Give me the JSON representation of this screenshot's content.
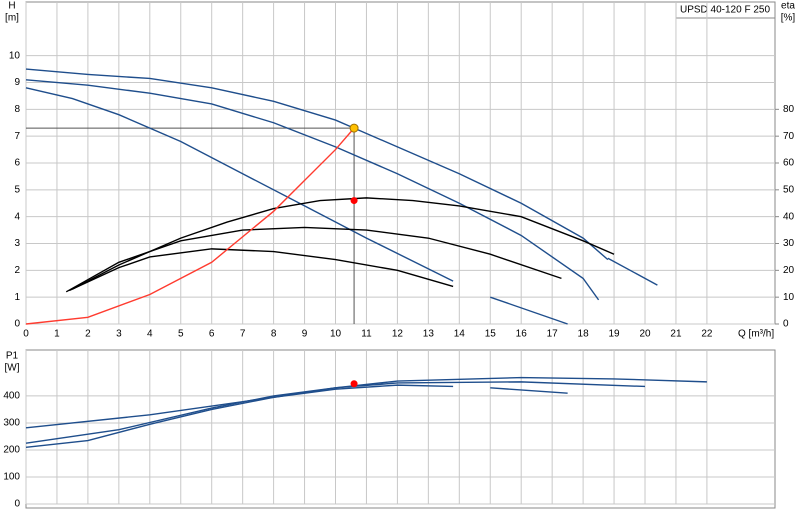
{
  "chart_data": [
    {
      "type": "line",
      "product_label": "UPSD 40-120 F 250",
      "ylabel": "H",
      "yunit": "[m]",
      "y2label": "eta",
      "y2unit": "[%]",
      "xlabel": "Q [m³/h]",
      "xlim": [
        0,
        24.2
      ],
      "xticks": [
        0,
        1,
        2,
        3,
        4,
        5,
        6,
        7,
        8,
        9,
        10,
        11,
        12,
        13,
        14,
        15,
        16,
        17,
        18,
        19,
        20,
        21,
        22
      ],
      "ylim": [
        0,
        12
      ],
      "yticks": [
        0,
        1,
        2,
        3,
        4,
        5,
        6,
        7,
        8,
        9,
        10
      ],
      "y2lim": [
        0,
        120
      ],
      "y2ticks": [
        0,
        10,
        20,
        30,
        40,
        50,
        60,
        70,
        80
      ],
      "grid": true,
      "series": [
        {
          "color": "#1f4e8c",
          "x": [
            0,
            2,
            4,
            6,
            8,
            10,
            10.6,
            12,
            14,
            16,
            18,
            18.8
          ],
          "values": [
            9.5,
            9.3,
            9.15,
            8.8,
            8.3,
            7.6,
            7.3,
            6.6,
            5.6,
            4.5,
            3.2,
            2.4
          ]
        },
        {
          "color": "#1f4e8c",
          "x": [
            18.8,
            20.4
          ],
          "values": [
            2.45,
            1.45
          ]
        },
        {
          "color": "#1f4e8c",
          "x": [
            0,
            2,
            4,
            6,
            8,
            10,
            12,
            14,
            16,
            18,
            18.5
          ],
          "values": [
            9.1,
            8.9,
            8.6,
            8.2,
            7.5,
            6.6,
            5.6,
            4.5,
            3.3,
            1.7,
            0.9
          ]
        },
        {
          "color": "#1f4e8c",
          "x": [
            0,
            1.5,
            3,
            5,
            7,
            9,
            11,
            13.8
          ],
          "values": [
            8.8,
            8.4,
            7.8,
            6.8,
            5.6,
            4.4,
            3.2,
            1.6
          ]
        },
        {
          "color": "#1f4e8c",
          "x": [
            15,
            17.5
          ],
          "values": [
            1.0,
            0
          ]
        },
        {
          "color": "#000000",
          "axis": "y2",
          "x": [
            1.5,
            3,
            5,
            6.5,
            8,
            9.5,
            11,
            12.5,
            14,
            16,
            18,
            19
          ],
          "values": [
            13,
            22,
            32,
            38,
            43,
            46,
            47,
            46,
            44,
            40,
            31,
            26
          ]
        },
        {
          "color": "#000000",
          "axis": "y2",
          "x": [
            1.3,
            3,
            5,
            7,
            9,
            11,
            13,
            15,
            17.3
          ],
          "values": [
            12,
            23,
            31,
            35,
            36,
            35,
            32,
            26,
            17
          ]
        },
        {
          "color": "#000000",
          "axis": "y2",
          "x": [
            1.4,
            3,
            4,
            6,
            8,
            10,
            12,
            13.8
          ],
          "values": [
            12.5,
            21,
            25,
            28,
            27,
            24,
            20,
            14
          ]
        },
        {
          "color": "#ff3b2f",
          "x": [
            0,
            2,
            4,
            6,
            8,
            10,
            10.6
          ],
          "values": [
            0,
            0.25,
            1.1,
            2.3,
            4.2,
            6.5,
            7.3
          ]
        }
      ],
      "operating_point": {
        "x": 10.6,
        "y": 7.3,
        "color": "#ffc000"
      },
      "eta_point": {
        "x": 10.6,
        "y": 46,
        "color": "#ff0000"
      }
    },
    {
      "type": "line",
      "ylabel": "P1",
      "yunit": "[W]",
      "xlim": [
        0,
        24.2
      ],
      "xticks": [
        0,
        1,
        2,
        3,
        4,
        5,
        6,
        7,
        8,
        9,
        10,
        11,
        12,
        13,
        14,
        15,
        16,
        17,
        18,
        19,
        20,
        21,
        22
      ],
      "ylim": [
        0,
        570
      ],
      "yticks": [
        0,
        100,
        200,
        300,
        400
      ],
      "grid": true,
      "series": [
        {
          "color": "#1f4e8c",
          "x": [
            0,
            4,
            8,
            10,
            12,
            16,
            19,
            22
          ],
          "values": [
            282,
            330,
            395,
            430,
            455,
            468,
            463,
            452
          ]
        },
        {
          "color": "#1f4e8c",
          "x": [
            0,
            3,
            6,
            8,
            10,
            12,
            16,
            20
          ],
          "values": [
            225,
            275,
            355,
            400,
            430,
            448,
            452,
            435
          ]
        },
        {
          "color": "#1f4e8c",
          "x": [
            0,
            2,
            4,
            6,
            8,
            10,
            12,
            13.8
          ],
          "values": [
            210,
            235,
            295,
            350,
            395,
            425,
            440,
            435
          ]
        },
        {
          "color": "#1f4e8c",
          "x": [
            15,
            17.5
          ],
          "values": [
            430,
            410
          ]
        }
      ],
      "duty_point": {
        "x": 10.6,
        "y": 445,
        "color": "#ff0000"
      }
    }
  ]
}
